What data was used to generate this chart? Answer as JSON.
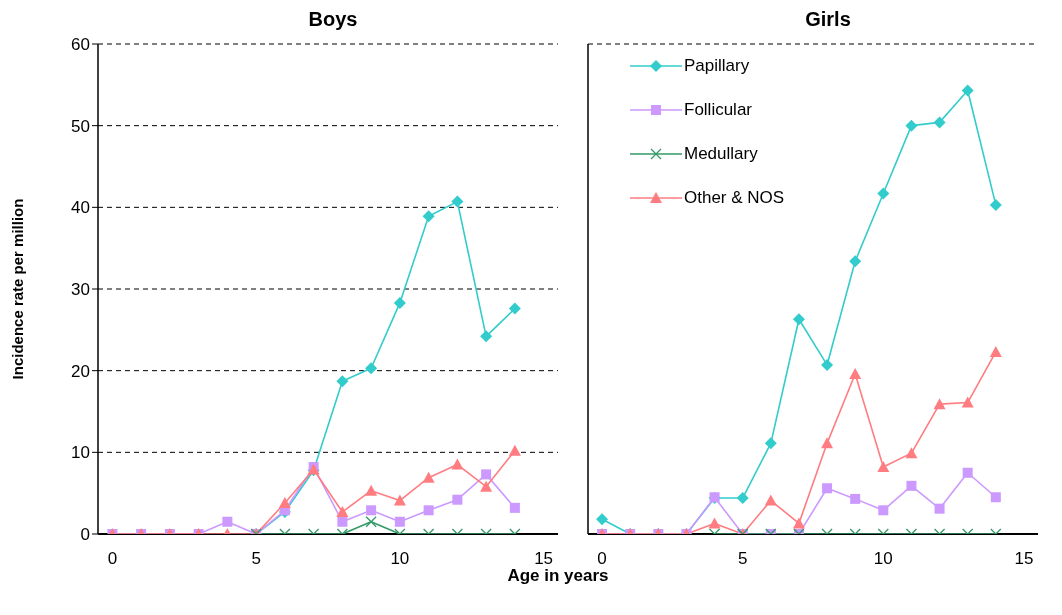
{
  "chart_data": [
    {
      "type": "line",
      "title": "Boys",
      "xlabel": "Age in years",
      "ylabel": "Incidence rate per million",
      "x": [
        0,
        1,
        2,
        3,
        4,
        5,
        6,
        7,
        8,
        9,
        10,
        11,
        12,
        13,
        14
      ],
      "xlim": [
        -0.5,
        15.5
      ],
      "xticks": [
        0,
        5,
        10,
        15
      ],
      "ylim": [
        0,
        60
      ],
      "yticks": [
        0,
        10,
        20,
        30,
        40,
        50,
        60
      ],
      "grid": "y",
      "legend": false,
      "series": [
        {
          "color": "#33cccc",
          "marker": "diamond",
          "values": [
            null,
            null,
            null,
            null,
            null,
            0,
            2.7,
            7.8,
            18.7,
            20.3,
            28.3,
            38.9,
            40.7,
            24.2,
            27.6
          ]
        },
        {
          "color": "#cc99ff",
          "marker": "square",
          "values": [
            0,
            0,
            0,
            0,
            1.5,
            0,
            2.9,
            8.2,
            1.5,
            2.9,
            1.5,
            2.9,
            4.2,
            7.3,
            3.2
          ]
        },
        {
          "color": "#339966",
          "marker": "cross",
          "values": [
            null,
            null,
            null,
            null,
            null,
            0,
            0,
            0,
            0,
            1.5,
            0,
            0,
            0,
            0,
            0
          ]
        },
        {
          "color": "#ff7c80",
          "marker": "triangle",
          "values": [
            0,
            0,
            0,
            0,
            0,
            0,
            3.8,
            7.9,
            2.7,
            5.3,
            4.1,
            6.9,
            8.5,
            5.8,
            10.2
          ]
        }
      ]
    },
    {
      "type": "line",
      "title": "Girls",
      "x": [
        0,
        1,
        2,
        3,
        4,
        5,
        6,
        7,
        8,
        9,
        10,
        11,
        12,
        13,
        14
      ],
      "xlim": [
        -0.5,
        15.5
      ],
      "xticks": [
        0,
        5,
        10,
        15
      ],
      "ylim": [
        0,
        60
      ],
      "yticks": [
        0,
        10,
        20,
        30,
        40,
        50,
        60
      ],
      "grid": "y",
      "legend": "top left",
      "tick_labels": "x",
      "series": [
        {
          "name": "Papillary",
          "color": "#33cccc",
          "marker": "diamond",
          "values": [
            1.8,
            0,
            0,
            0,
            4.4,
            4.4,
            11.1,
            26.3,
            20.7,
            33.4,
            41.7,
            50,
            50.4,
            54.3,
            40.3
          ]
        },
        {
          "name": "Follicular",
          "color": "#cc99ff",
          "marker": "square",
          "values": [
            0,
            0,
            0,
            0,
            4.5,
            0,
            0,
            0,
            5.6,
            4.3,
            2.9,
            5.9,
            3.1,
            7.5,
            4.5
          ]
        },
        {
          "name": "Medullary",
          "color": "#339966",
          "marker": "cross",
          "values": [
            null,
            null,
            null,
            null,
            0,
            0,
            0,
            0,
            0,
            0,
            0,
            0,
            0,
            0,
            0
          ]
        },
        {
          "name": "Other & NOS",
          "color": "#ff7c80",
          "marker": "triangle",
          "values": [
            0,
            0,
            0,
            0,
            1.3,
            0,
            4.1,
            1.3,
            11.1,
            19.6,
            8.2,
            9.9,
            15.9,
            16.1,
            22.3
          ]
        }
      ]
    }
  ]
}
